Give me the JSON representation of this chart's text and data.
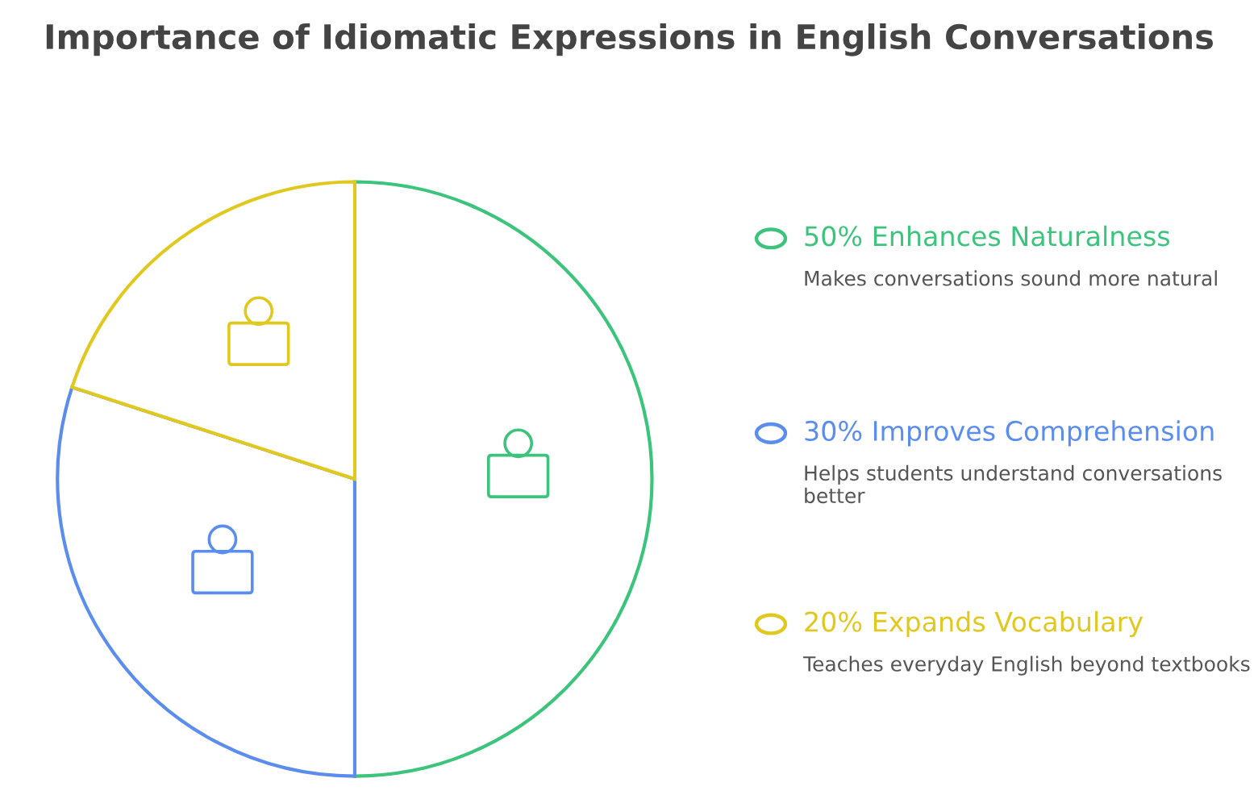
{
  "chart_data": {
    "type": "pie",
    "title": "Importance of Idiomatic Expressions in English Conversations",
    "categories": [
      "Enhances Naturalness",
      "Improves Comprehension",
      "Expands Vocabulary"
    ],
    "values": [
      50,
      30,
      20
    ],
    "value_labels": [
      "50%",
      "30%",
      "20%"
    ],
    "colors": [
      "#3cc47c",
      "#5b8def",
      "#e0c81e"
    ],
    "annotations": [
      "Makes conversations sound more natural",
      "Helps students understand conversations better",
      "Teaches everyday English beyond textbooks"
    ],
    "legend": "right"
  }
}
